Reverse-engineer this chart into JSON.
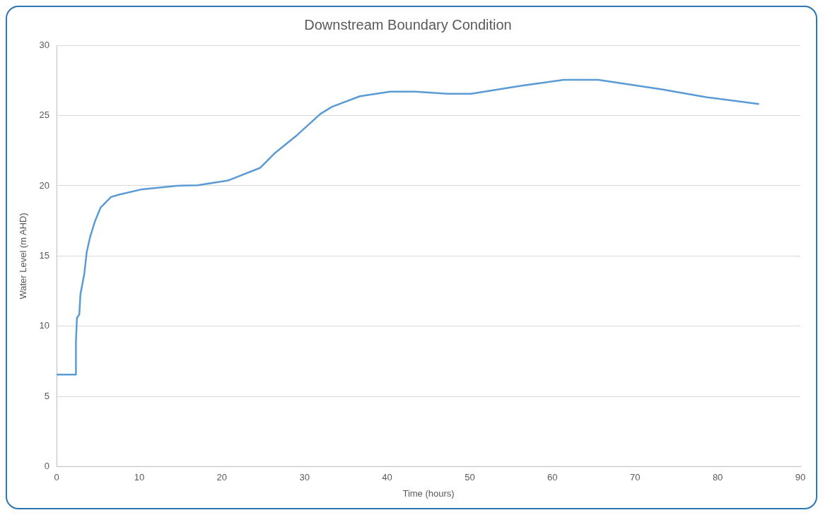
{
  "chart_data": {
    "type": "line",
    "title": "Downstream Boundary Condition",
    "xlabel": "Time (hours)",
    "ylabel": "Water Level (m AHD)",
    "x": [
      0,
      2.33,
      2.34,
      2.46,
      2.75,
      2.88,
      3.36,
      3.64,
      4.06,
      4.62,
      5.32,
      6.58,
      7.56,
      10.36,
      14.56,
      17.08,
      20.73,
      24.65,
      26.33,
      29.13,
      31.93,
      33.33,
      36.7,
      40.34,
      43.42,
      47.34,
      50.14,
      56.3,
      61.34,
      65.55,
      73.1,
      78.71,
      85.0
    ],
    "series": [
      {
        "color": "#5b9bd5",
        "values": [
          6.56,
          6.56,
          8.9,
          10.6,
          10.85,
          12.27,
          13.77,
          15.27,
          16.36,
          17.44,
          18.44,
          19.2,
          19.37,
          19.75,
          20.0,
          20.03,
          20.37,
          21.28,
          22.28,
          23.62,
          25.12,
          25.62,
          26.37,
          26.7,
          26.7,
          26.54,
          26.54,
          27.12,
          27.54,
          27.54,
          26.87,
          26.29,
          25.82
        ]
      }
    ],
    "xlim": [
      0,
      90
    ],
    "xticks": [
      0,
      10,
      20,
      30,
      40,
      50,
      60,
      70,
      80,
      90
    ],
    "ylim": [
      0,
      30
    ],
    "yticks": [
      0,
      5,
      10,
      15,
      20,
      25,
      30
    ],
    "grid": "y",
    "legend": false,
    "marker": "none",
    "line_style": "solid"
  }
}
